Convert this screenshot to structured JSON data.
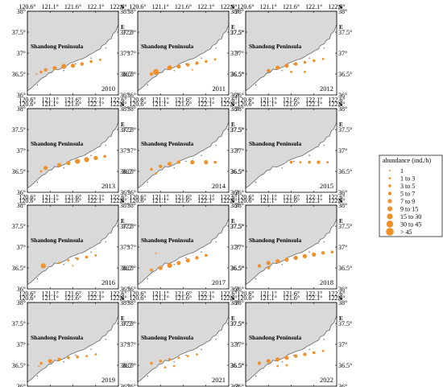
{
  "title_label": "Shandong Peninsula",
  "x_ticks": [
    "120.6°",
    "121.1°",
    "121.6°",
    "122.1°",
    "122.6°"
  ],
  "y_ticks": [
    "38°",
    "37.5°",
    "37°",
    "36.5°",
    "36°"
  ],
  "compass": {
    "north": "N",
    "east": "E"
  },
  "colors": {
    "land": "#d9d9d9",
    "sea": "#ffffff",
    "marker": "#f0902a",
    "coast": "#555555"
  },
  "legend": {
    "title": "abundance (ind./h)",
    "items": [
      {
        "label": "1",
        "size_rank": 1
      },
      {
        "label": "1  to  3",
        "size_rank": 2
      },
      {
        "label": "3  to  5",
        "size_rank": 3
      },
      {
        "label": "5  to  7",
        "size_rank": 4
      },
      {
        "label": "7  to  9",
        "size_rank": 5
      },
      {
        "label": "9  to  15",
        "size_rank": 6
      },
      {
        "label": "15  to  30",
        "size_rank": 7
      },
      {
        "label": "30  to  45",
        "size_rank": 8
      },
      {
        "label": "> 45",
        "size_rank": 9
      }
    ]
  },
  "panels": [
    {
      "year": "2010",
      "stations": [
        [
          120.9,
          36.55,
          3
        ],
        [
          121.0,
          36.6,
          4
        ],
        [
          121.2,
          36.64,
          5
        ],
        [
          121.4,
          36.68,
          6
        ],
        [
          121.6,
          36.7,
          5
        ],
        [
          121.8,
          36.74,
          4
        ],
        [
          122.0,
          36.8,
          3
        ],
        [
          122.2,
          36.84,
          2
        ],
        [
          120.8,
          36.5,
          1
        ]
      ]
    },
    {
      "year": "2011",
      "stations": [
        [
          120.9,
          36.5,
          4
        ],
        [
          121.0,
          36.55,
          7
        ],
        [
          121.3,
          36.65,
          6
        ],
        [
          121.5,
          36.68,
          5
        ],
        [
          121.7,
          36.72,
          4
        ],
        [
          121.9,
          36.76,
          4
        ],
        [
          122.1,
          36.8,
          3
        ],
        [
          122.3,
          36.85,
          2
        ],
        [
          121.8,
          36.6,
          1
        ]
      ]
    },
    {
      "year": "2012",
      "stations": [
        [
          121.1,
          36.58,
          4
        ],
        [
          121.3,
          36.65,
          5
        ],
        [
          121.5,
          36.7,
          5
        ],
        [
          121.7,
          36.74,
          4
        ],
        [
          121.9,
          36.78,
          3
        ],
        [
          122.1,
          36.82,
          3
        ],
        [
          122.3,
          36.86,
          2
        ],
        [
          121.6,
          36.55,
          2
        ],
        [
          121.9,
          36.55,
          2
        ]
      ]
    },
    {
      "year": "2013",
      "stations": [
        [
          121.0,
          36.58,
          5
        ],
        [
          121.3,
          36.65,
          5
        ],
        [
          121.5,
          36.7,
          5
        ],
        [
          121.7,
          36.74,
          6
        ],
        [
          121.9,
          36.78,
          6
        ],
        [
          122.1,
          36.82,
          5
        ],
        [
          122.3,
          36.86,
          3
        ],
        [
          120.9,
          36.5,
          2
        ]
      ]
    },
    {
      "year": "2014",
      "stations": [
        [
          120.9,
          36.55,
          3
        ],
        [
          121.1,
          36.62,
          4
        ],
        [
          121.3,
          36.68,
          5
        ],
        [
          121.5,
          36.72,
          4
        ],
        [
          121.8,
          36.72,
          5
        ],
        [
          122.1,
          36.72,
          5
        ],
        [
          122.3,
          36.72,
          3
        ],
        [
          121.0,
          36.45,
          2
        ]
      ]
    },
    {
      "year": "2015",
      "stations": [
        [
          121.6,
          36.72,
          3
        ],
        [
          121.8,
          36.72,
          2
        ],
        [
          122.0,
          36.72,
          3
        ],
        [
          122.2,
          36.72,
          4
        ],
        [
          122.4,
          36.72,
          2
        ]
      ]
    },
    {
      "year": "2016",
      "stations": [
        [
          120.95,
          36.55,
          6
        ],
        [
          121.3,
          36.62,
          2
        ],
        [
          121.5,
          36.68,
          2
        ],
        [
          121.7,
          36.72,
          3
        ],
        [
          121.9,
          36.76,
          3
        ],
        [
          122.1,
          36.8,
          2
        ],
        [
          121.6,
          36.55,
          1
        ]
      ]
    },
    {
      "year": "2017",
      "stations": [
        [
          120.9,
          36.45,
          3
        ],
        [
          121.1,
          36.5,
          5
        ],
        [
          121.3,
          36.56,
          6
        ],
        [
          121.5,
          36.62,
          5
        ],
        [
          121.7,
          36.68,
          5
        ],
        [
          121.9,
          36.74,
          4
        ],
        [
          122.1,
          36.8,
          3
        ],
        [
          121.0,
          36.85,
          1
        ]
      ]
    },
    {
      "year": "2018",
      "stations": [
        [
          120.9,
          36.55,
          4
        ],
        [
          121.1,
          36.62,
          5
        ],
        [
          121.3,
          36.66,
          5
        ],
        [
          121.5,
          36.7,
          5
        ],
        [
          121.7,
          36.74,
          5
        ],
        [
          121.9,
          36.78,
          5
        ],
        [
          122.1,
          36.82,
          5
        ],
        [
          122.3,
          36.86,
          4
        ],
        [
          122.5,
          36.88,
          3
        ],
        [
          121.1,
          36.5,
          3
        ]
      ]
    },
    {
      "year": "2019",
      "stations": [
        [
          120.9,
          36.55,
          3
        ],
        [
          121.1,
          36.6,
          5
        ],
        [
          121.3,
          36.64,
          4
        ],
        [
          121.5,
          36.68,
          3
        ],
        [
          121.7,
          36.7,
          3
        ],
        [
          121.9,
          36.72,
          2
        ],
        [
          122.1,
          36.76,
          2
        ],
        [
          120.85,
          36.48,
          1
        ]
      ]
    },
    {
      "year": "2021",
      "stations": [
        [
          120.9,
          36.55,
          3
        ],
        [
          121.1,
          36.6,
          3
        ],
        [
          121.3,
          36.64,
          3
        ],
        [
          121.5,
          36.68,
          2
        ],
        [
          121.7,
          36.72,
          2
        ],
        [
          121.9,
          36.76,
          2
        ],
        [
          121.2,
          36.45,
          2
        ],
        [
          121.4,
          36.48,
          2
        ]
      ]
    },
    {
      "year": "2022",
      "stations": [
        [
          120.9,
          36.55,
          4
        ],
        [
          121.1,
          36.6,
          5
        ],
        [
          121.3,
          36.64,
          5
        ],
        [
          121.5,
          36.68,
          5
        ],
        [
          121.7,
          36.72,
          4
        ],
        [
          121.9,
          36.76,
          4
        ],
        [
          122.1,
          36.8,
          3
        ],
        [
          122.3,
          36.84,
          2
        ],
        [
          121.3,
          36.48,
          2
        ],
        [
          121.5,
          36.5,
          2
        ]
      ]
    }
  ]
}
